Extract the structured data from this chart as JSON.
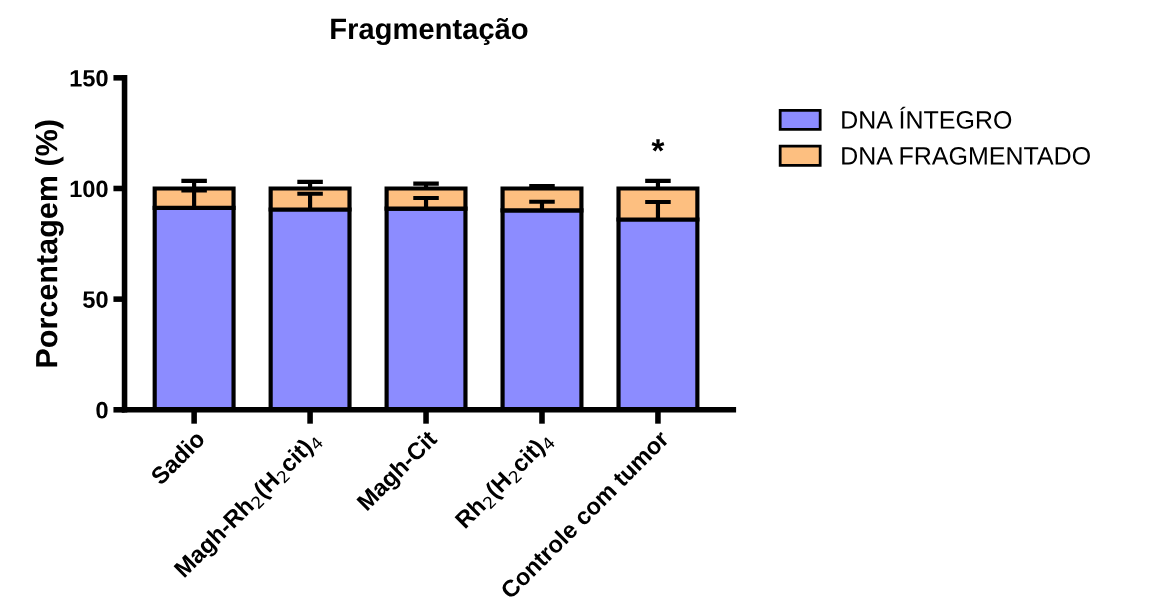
{
  "chart_data": {
    "type": "bar",
    "title": "Fragmentação",
    "ylabel": "Porcentagem (%)",
    "categories": [
      "Sadio",
      "Magh-Rh$_{2}$(H$_{2}$cit)$_{4}$",
      "Magh-Cit",
      "Rh$_{2}$(H$_{2}$cit)$_{4}$",
      "Controle com tumor"
    ],
    "stacked": true,
    "series": [
      {
        "name": "DNA ÍNTEGRO",
        "color": "#8c8cff",
        "values": [
          91.2,
          90.5,
          90.9,
          90.1,
          86.0
        ],
        "errors": [
          [
            91.2,
            99.1
          ],
          [
            90.5,
            97.6
          ],
          [
            90.9,
            95.7
          ],
          [
            90.1,
            94.0
          ],
          [
            86.0,
            93.9
          ]
        ]
      },
      {
        "name": "DNA FRAGMENTADO",
        "color": "#fdbf80",
        "values": [
          8.8,
          9.5,
          9.1,
          9.9,
          14.0
        ],
        "errors": [
          [
            100,
            103.4
          ],
          [
            100,
            103.0
          ],
          [
            100,
            102.2
          ],
          [
            100,
            101.1
          ],
          [
            100,
            103.4
          ]
        ]
      }
    ],
    "ylim": [
      0,
      150
    ],
    "yticks": [
      0,
      50,
      100,
      150
    ],
    "annotations": [
      "*"
    ],
    "legend": "top right",
    "grid": false
  }
}
